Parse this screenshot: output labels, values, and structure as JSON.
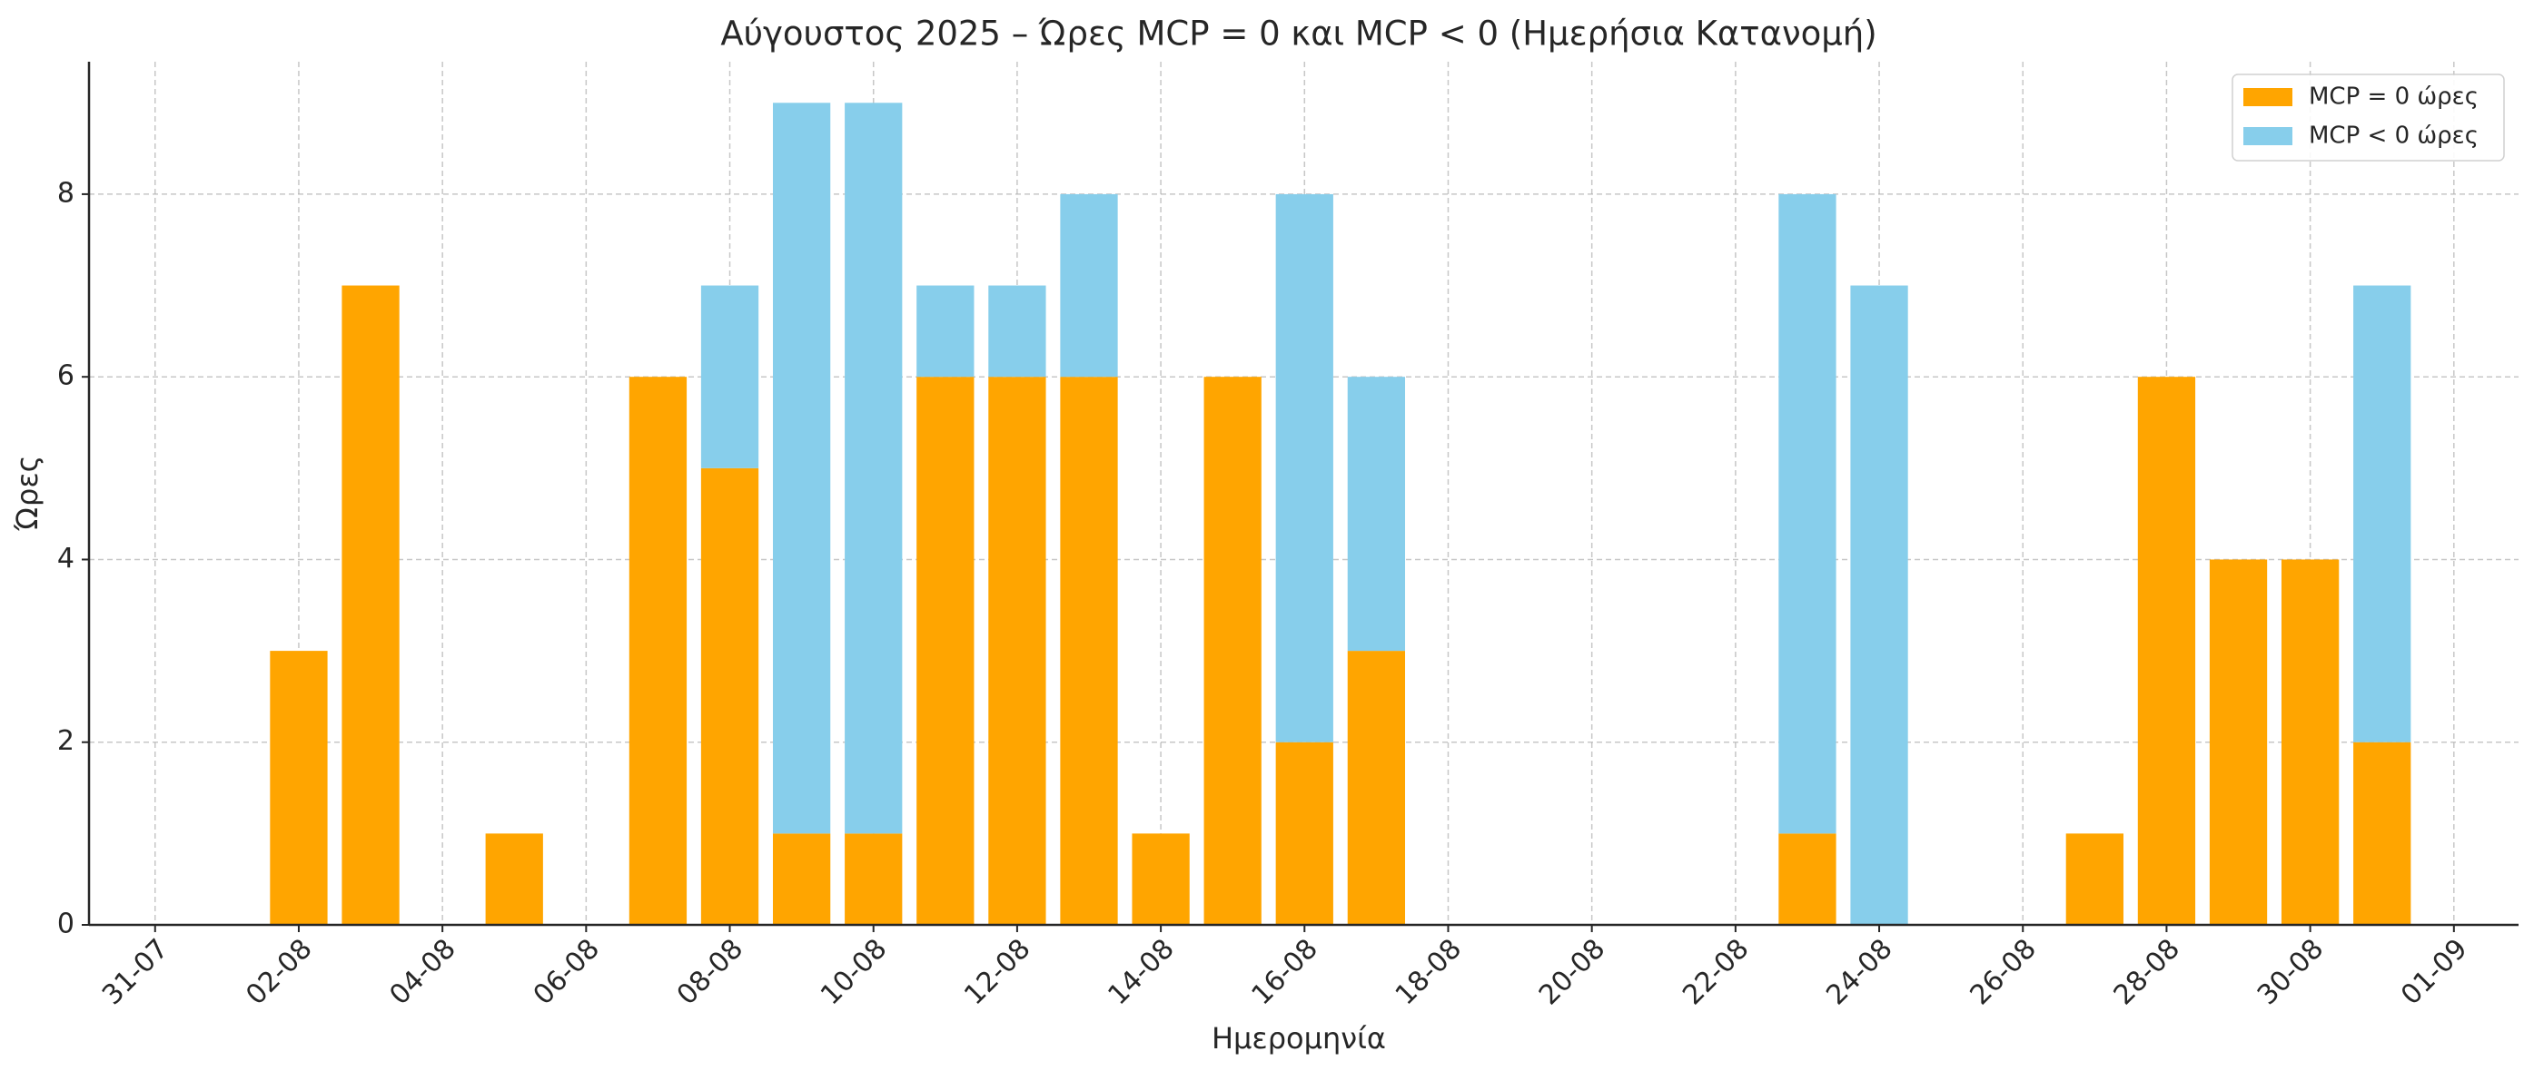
{
  "chart_data": {
    "type": "stacked-bar",
    "title": "Αύγουστος 2025 – Ώρες MCP = 0 και MCP < 0 (Ημερήσια Κατανομή)",
    "x_label": "Ημερομηνία",
    "y_label": "Ώρες",
    "x": [
      "01-08",
      "02-08",
      "03-08",
      "04-08",
      "05-08",
      "06-08",
      "07-08",
      "08-08",
      "09-08",
      "10-08",
      "11-08",
      "12-08",
      "13-08",
      "14-08",
      "15-08",
      "16-08",
      "17-08",
      "18-08",
      "19-08",
      "20-08",
      "21-08",
      "22-08",
      "23-08",
      "24-08",
      "25-08",
      "26-08",
      "27-08",
      "28-08",
      "29-08",
      "30-08",
      "31-08"
    ],
    "series": [
      {
        "name": "MCP = 0 ώρες",
        "color": "#ffa500",
        "values": [
          0,
          3,
          7,
          0,
          1,
          0,
          6,
          5,
          1,
          1,
          6,
          6,
          6,
          1,
          6,
          2,
          3,
          0,
          0,
          0,
          0,
          0,
          1,
          0,
          0,
          0,
          1,
          6,
          4,
          4,
          2
        ]
      },
      {
        "name": "MCP < 0 ώρες",
        "color": "#87ceeb",
        "values": [
          0,
          0,
          0,
          0,
          0,
          0,
          0,
          2,
          8,
          8,
          1,
          1,
          2,
          0,
          0,
          6,
          3,
          0,
          0,
          0,
          0,
          0,
          7,
          7,
          0,
          0,
          0,
          0,
          0,
          0,
          5
        ]
      }
    ],
    "xticks": [
      "31-07",
      "02-08",
      "04-08",
      "06-08",
      "08-08",
      "10-08",
      "12-08",
      "14-08",
      "16-08",
      "18-08",
      "20-08",
      "22-08",
      "24-08",
      "26-08",
      "28-08",
      "30-08",
      "01-09"
    ],
    "ylim": [
      0,
      9.45
    ],
    "yticks": [
      0,
      2,
      4,
      6,
      8
    ],
    "grid": true,
    "legend": "upper right"
  }
}
